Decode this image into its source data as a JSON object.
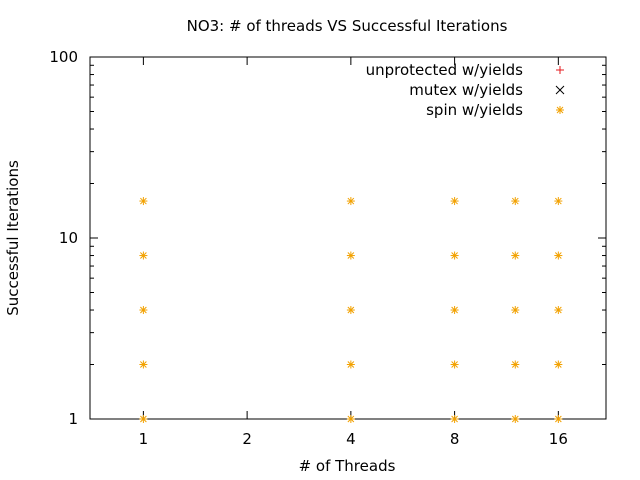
{
  "chart_data": {
    "type": "scatter",
    "title": "NO3: # of threads VS Successful Iterations",
    "xlabel": "# of Threads",
    "ylabel": "Successful Iterations",
    "x_scale": "log2",
    "y_scale": "log10",
    "xlim": [
      0.7,
      22
    ],
    "ylim": [
      1,
      100
    ],
    "x_ticks": [
      {
        "value": 1,
        "label": "1"
      },
      {
        "value": 2,
        "label": "2"
      },
      {
        "value": 4,
        "label": "4"
      },
      {
        "value": 8,
        "label": "8"
      },
      {
        "value": 16,
        "label": "16"
      }
    ],
    "y_ticks": [
      {
        "value": 1,
        "label": "1"
      },
      {
        "value": 10,
        "label": "10"
      },
      {
        "value": 100,
        "label": "100"
      }
    ],
    "grid": false,
    "legend_position": "top-right",
    "series": [
      {
        "name": "unprotected w/yields",
        "marker": "plus",
        "color": "#e41a1c",
        "points": []
      },
      {
        "name": "mutex w/yields",
        "marker": "cross",
        "color": "#000000",
        "points": []
      },
      {
        "name": "spin w/yields",
        "marker": "star",
        "color": "#f2a100",
        "points": [
          {
            "x": 1,
            "y": 1
          },
          {
            "x": 1,
            "y": 2
          },
          {
            "x": 1,
            "y": 4
          },
          {
            "x": 1,
            "y": 8
          },
          {
            "x": 1,
            "y": 16
          },
          {
            "x": 4,
            "y": 1
          },
          {
            "x": 4,
            "y": 2
          },
          {
            "x": 4,
            "y": 4
          },
          {
            "x": 4,
            "y": 8
          },
          {
            "x": 4,
            "y": 16
          },
          {
            "x": 8,
            "y": 1
          },
          {
            "x": 8,
            "y": 2
          },
          {
            "x": 8,
            "y": 4
          },
          {
            "x": 8,
            "y": 8
          },
          {
            "x": 8,
            "y": 16
          },
          {
            "x": 12,
            "y": 1
          },
          {
            "x": 12,
            "y": 2
          },
          {
            "x": 12,
            "y": 4
          },
          {
            "x": 12,
            "y": 8
          },
          {
            "x": 12,
            "y": 16
          },
          {
            "x": 16,
            "y": 1
          },
          {
            "x": 16,
            "y": 2
          },
          {
            "x": 16,
            "y": 4
          },
          {
            "x": 16,
            "y": 8
          },
          {
            "x": 16,
            "y": 16
          }
        ]
      }
    ]
  }
}
